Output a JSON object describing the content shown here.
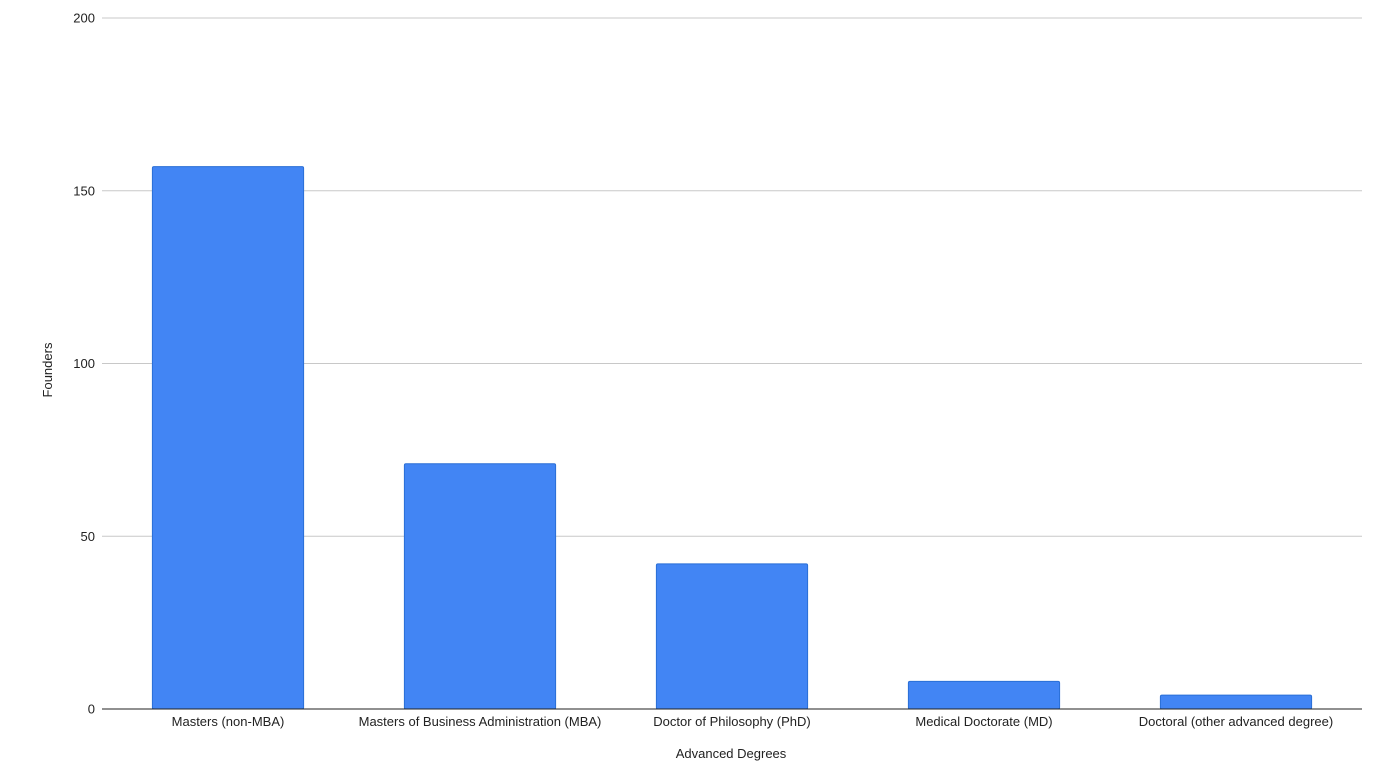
{
  "chart_data": {
    "type": "bar",
    "title": "",
    "xlabel": "Advanced Degrees",
    "ylabel": "Founders",
    "categories": [
      "Masters (non-MBA)",
      "Masters of Business Administration (MBA)",
      "Doctor of Philosophy (PhD)",
      "Medical Doctorate (MD)",
      "Doctoral (other advanced degree)"
    ],
    "values": [
      157,
      71,
      42,
      8,
      4
    ],
    "ylim": [
      0,
      200
    ],
    "yticks": [
      "0",
      "50",
      "100",
      "150",
      "200"
    ],
    "grid": true,
    "legend": "none",
    "bar_color": "#4285f4",
    "bar_edge_color": "#2a6fd6"
  }
}
